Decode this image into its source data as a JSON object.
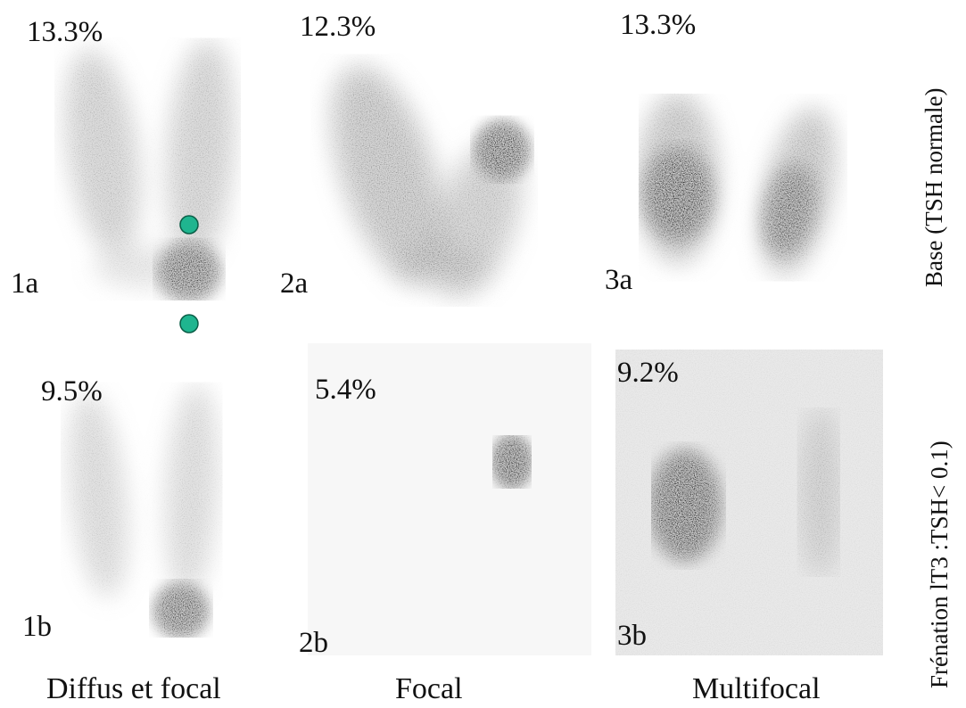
{
  "row_labels": {
    "top": "Base (TSH normale)",
    "bottom": "Frénation lT3 :TSH< 0.1)"
  },
  "column_labels": [
    "Diffus et focal",
    "Focal",
    "Multifocal"
  ],
  "panels": [
    {
      "id": "1a",
      "label": "1a",
      "uptake": "13.3%"
    },
    {
      "id": "2a",
      "label": "2a",
      "uptake": "12.3%"
    },
    {
      "id": "3a",
      "label": "3a",
      "uptake": "13.3%"
    },
    {
      "id": "1b",
      "label": "1b",
      "uptake": "9.5%"
    },
    {
      "id": "2b",
      "label": "2b",
      "uptake": "5.4%"
    },
    {
      "id": "3b",
      "label": "3b",
      "uptake": "9.2%"
    }
  ],
  "colors": {
    "marker": "#1fb58f",
    "marker_outline": "#0a5e47",
    "tracer": "#000000"
  },
  "marker_count": 2
}
